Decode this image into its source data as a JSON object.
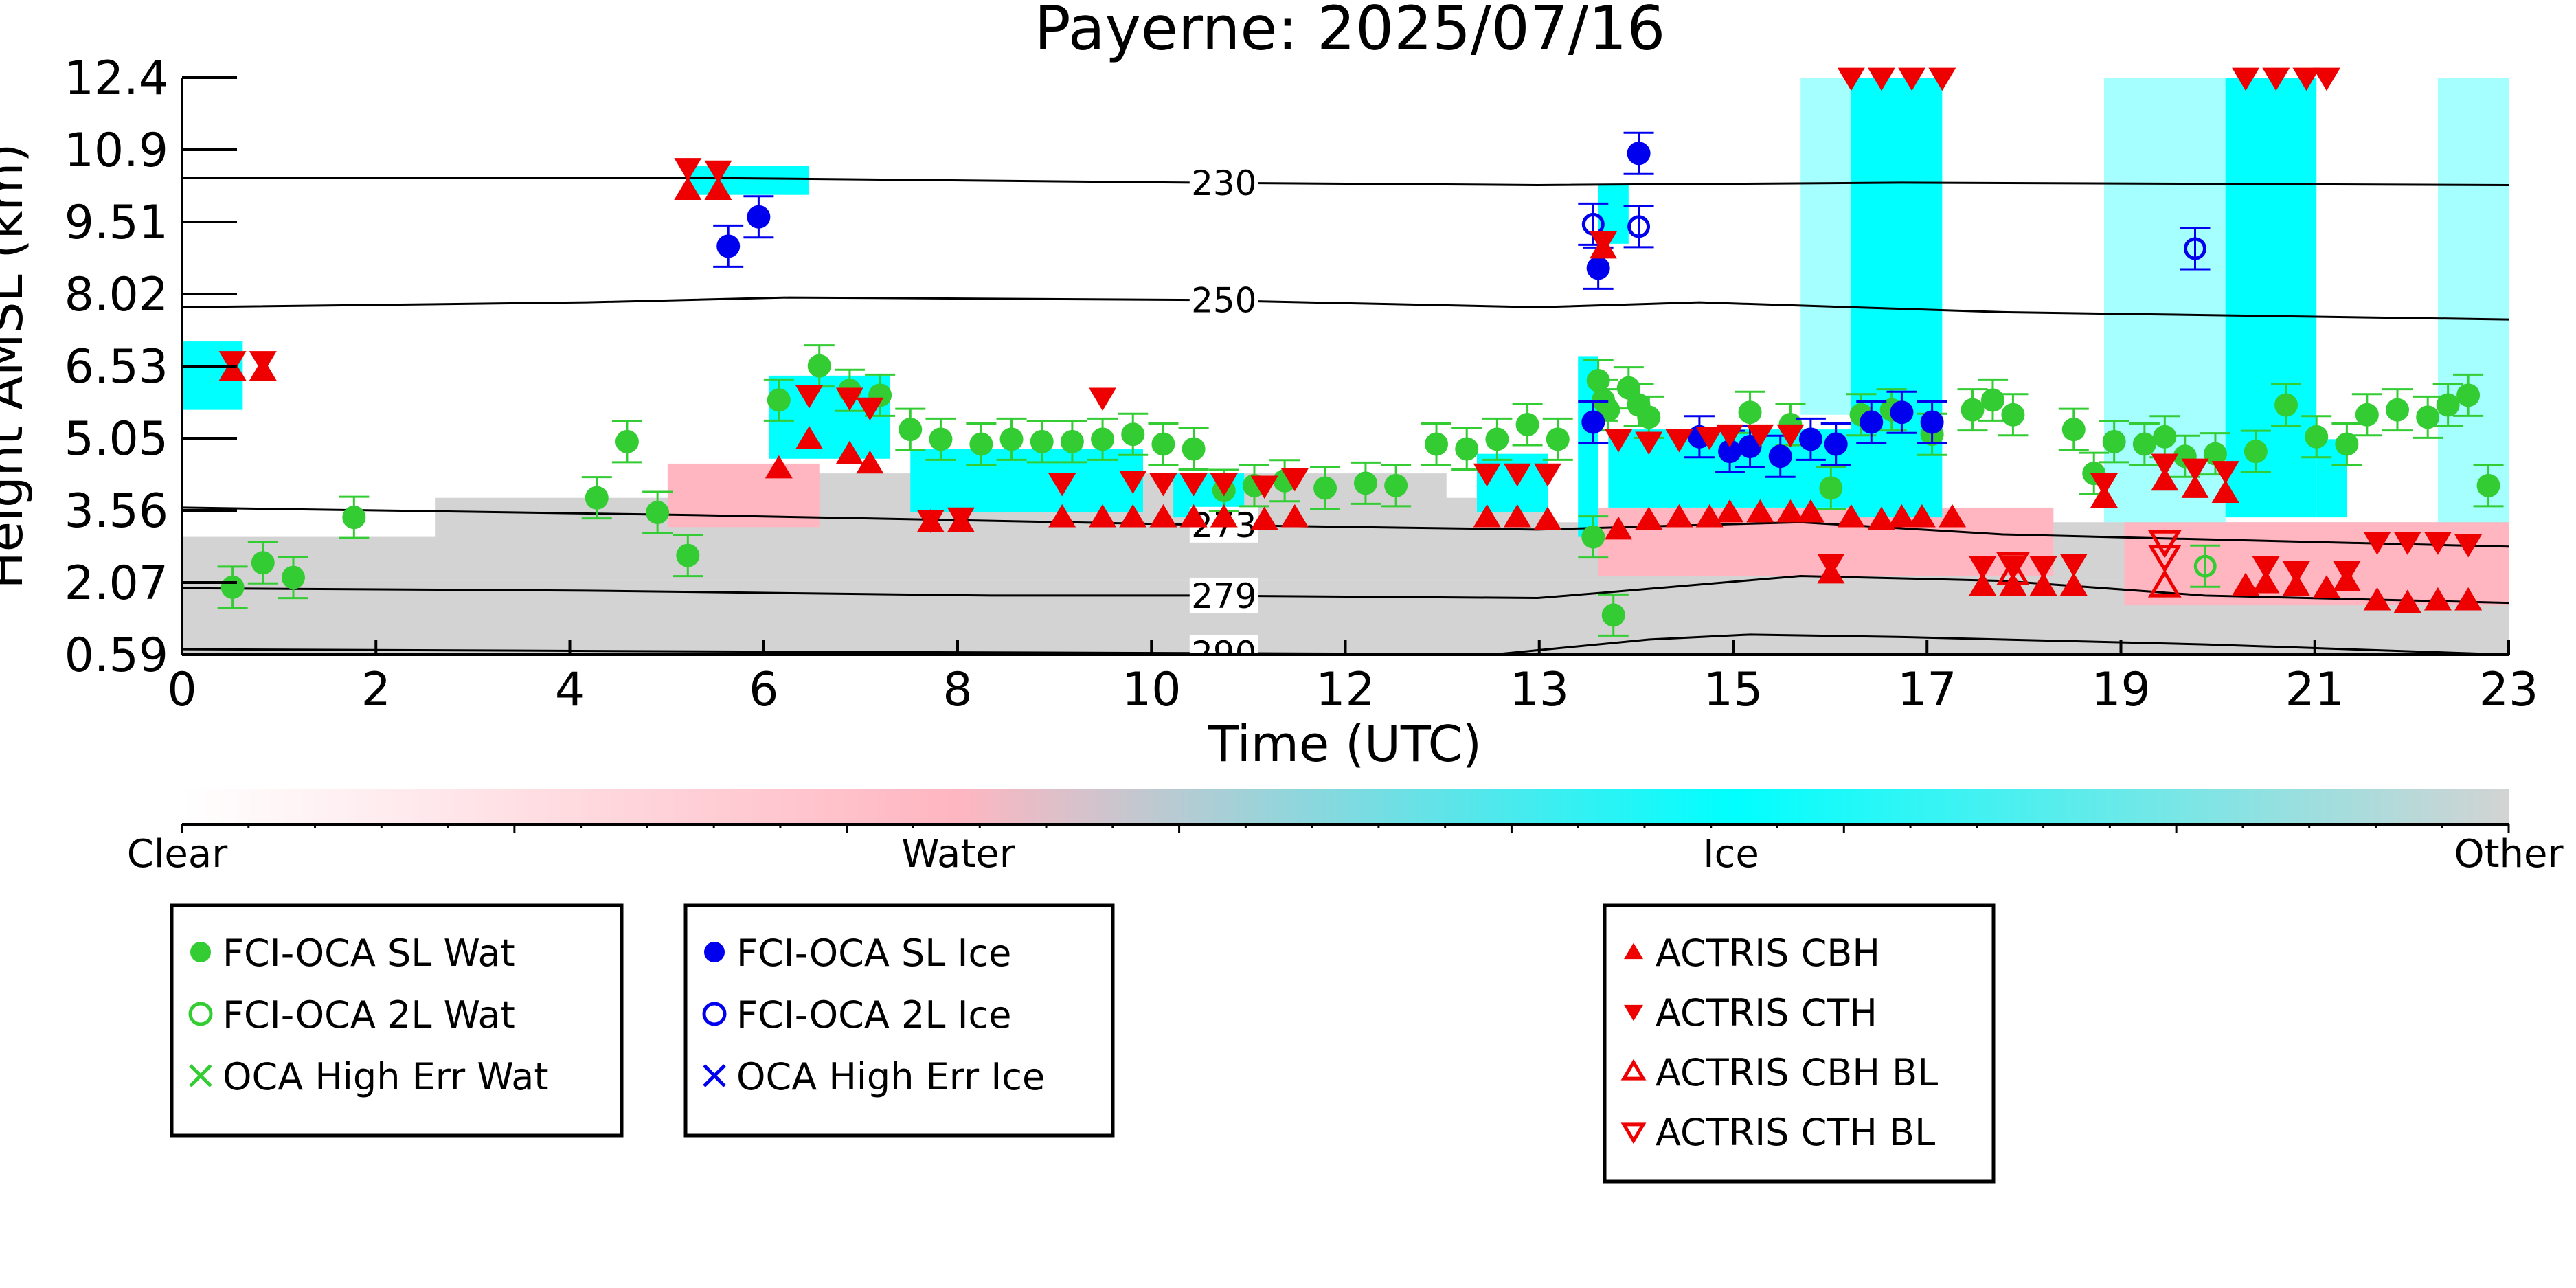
{
  "chart_data": {
    "type": "scatter",
    "title": "Payerne: 2025/07/16",
    "xlabel": "Time (UTC)",
    "ylabel": "Height AMSL (km)",
    "xlim": [
      0,
      23
    ],
    "ylim": [
      0.59,
      12.4
    ],
    "x_ticks": [
      "0",
      "2",
      "4",
      "6",
      "8",
      "10",
      "12",
      "13",
      "15",
      "17",
      "19",
      "21",
      "23"
    ],
    "y_ticks": [
      "12.4",
      "10.9",
      "9.51",
      "8.02",
      "6.53",
      "5.05",
      "3.56",
      "2.07",
      "0.59"
    ],
    "colorbar": {
      "labels": [
        "Clear",
        "Water",
        "Ice",
        "Other"
      ],
      "colors": [
        "#ffffff",
        "#ffb6c1",
        "#00ffff",
        "#d3d3d3"
      ]
    },
    "isotherms": [
      {
        "label": "230",
        "points": [
          [
            0,
            10.35
          ],
          [
            5,
            10.35
          ],
          [
            10,
            10.25
          ],
          [
            13.4,
            10.2
          ],
          [
            17,
            10.25
          ],
          [
            23,
            10.2
          ]
        ]
      },
      {
        "label": "250",
        "points": [
          [
            0,
            7.7
          ],
          [
            4,
            7.8
          ],
          [
            6,
            7.9
          ],
          [
            10,
            7.85
          ],
          [
            13.4,
            7.7
          ],
          [
            15,
            7.8
          ],
          [
            18,
            7.6
          ],
          [
            23,
            7.45
          ]
        ]
      },
      {
        "label": "273",
        "points": [
          [
            0,
            3.6
          ],
          [
            5,
            3.45
          ],
          [
            10,
            3.25
          ],
          [
            13.4,
            3.15
          ],
          [
            16,
            3.3
          ],
          [
            18,
            3.05
          ],
          [
            23,
            2.8
          ]
        ]
      },
      {
        "label": "279",
        "points": [
          [
            0,
            1.95
          ],
          [
            4,
            1.9
          ],
          [
            8,
            1.8
          ],
          [
            10,
            1.8
          ],
          [
            13.4,
            1.75
          ],
          [
            14,
            1.85
          ],
          [
            16,
            2.2
          ],
          [
            18,
            2.1
          ],
          [
            20,
            1.8
          ],
          [
            23,
            1.65
          ]
        ]
      },
      {
        "label": "290",
        "points": [
          [
            0,
            0.7
          ],
          [
            6,
            0.65
          ],
          [
            13,
            0.6
          ],
          [
            14.5,
            0.9
          ],
          [
            15.5,
            1.0
          ],
          [
            17,
            0.95
          ],
          [
            20,
            0.8
          ],
          [
            23,
            0.59
          ]
        ]
      }
    ],
    "series": [
      {
        "name": "FCI-OCA SL Wat",
        "color": "#33cc33",
        "marker": "filled-circle",
        "points": [
          [
            0.5,
            1.97
          ],
          [
            0.8,
            2.47
          ],
          [
            1.1,
            2.17
          ],
          [
            1.7,
            3.4
          ],
          [
            4.1,
            3.8
          ],
          [
            4.4,
            4.95
          ],
          [
            4.7,
            3.5
          ],
          [
            5.0,
            2.62
          ],
          [
            5.9,
            5.8
          ],
          [
            6.3,
            6.5
          ],
          [
            6.6,
            6.0
          ],
          [
            6.9,
            5.9
          ],
          [
            7.2,
            5.2
          ],
          [
            7.5,
            5.0
          ],
          [
            7.9,
            4.9
          ],
          [
            8.2,
            5.0
          ],
          [
            8.5,
            4.95
          ],
          [
            8.8,
            4.95
          ],
          [
            9.1,
            5.0
          ],
          [
            9.4,
            5.1
          ],
          [
            9.7,
            4.9
          ],
          [
            10.0,
            4.8
          ],
          [
            10.3,
            3.95
          ],
          [
            10.6,
            4.05
          ],
          [
            10.9,
            4.15
          ],
          [
            11.3,
            4.0
          ],
          [
            11.7,
            4.1
          ],
          [
            12.0,
            4.05
          ],
          [
            12.4,
            4.9
          ],
          [
            12.7,
            4.8
          ],
          [
            13.0,
            5.0
          ],
          [
            13.3,
            5.3
          ],
          [
            13.6,
            5.0
          ],
          [
            13.95,
            3.0
          ],
          [
            14.0,
            6.2
          ],
          [
            14.05,
            5.8
          ],
          [
            14.1,
            5.6
          ],
          [
            14.15,
            1.4
          ],
          [
            14.3,
            6.05
          ],
          [
            14.4,
            5.7
          ],
          [
            14.5,
            5.45
          ],
          [
            15.5,
            5.55
          ],
          [
            15.9,
            5.3
          ],
          [
            16.3,
            4.0
          ],
          [
            16.6,
            5.5
          ],
          [
            16.9,
            5.6
          ],
          [
            17.3,
            5.1
          ],
          [
            17.7,
            5.6
          ],
          [
            17.9,
            5.8
          ],
          [
            18.1,
            5.5
          ],
          [
            18.7,
            5.2
          ],
          [
            18.9,
            4.3
          ],
          [
            19.1,
            4.95
          ],
          [
            19.4,
            4.9
          ],
          [
            19.6,
            5.05
          ],
          [
            19.8,
            4.65
          ],
          [
            20.1,
            4.7
          ],
          [
            20.5,
            4.75
          ],
          [
            20.8,
            5.7
          ],
          [
            21.1,
            5.05
          ],
          [
            21.4,
            4.9
          ],
          [
            21.6,
            5.5
          ],
          [
            21.9,
            5.6
          ],
          [
            22.2,
            5.45
          ],
          [
            22.4,
            5.7
          ],
          [
            22.6,
            5.9
          ],
          [
            22.8,
            4.05
          ]
        ]
      },
      {
        "name": "FCI-OCA 2L Wat",
        "color": "#33cc33",
        "marker": "open-circle",
        "points": [
          [
            20.0,
            2.4
          ]
        ]
      },
      {
        "name": "OCA High Err Wat",
        "color": "#33cc33",
        "marker": "x",
        "points": []
      },
      {
        "name": "FCI-OCA SL Ice",
        "color": "#0000ee",
        "marker": "filled-circle",
        "points": [
          [
            5.4,
            8.95
          ],
          [
            5.7,
            9.55
          ],
          [
            13.95,
            5.35
          ],
          [
            14.0,
            8.5
          ],
          [
            14.4,
            10.85
          ],
          [
            15.0,
            5.05
          ],
          [
            15.3,
            4.75
          ],
          [
            15.5,
            4.85
          ],
          [
            15.8,
            4.65
          ],
          [
            16.1,
            5.0
          ],
          [
            16.35,
            4.9
          ],
          [
            16.7,
            5.35
          ],
          [
            17.0,
            5.55
          ],
          [
            17.3,
            5.35
          ]
        ]
      },
      {
        "name": "FCI-OCA 2L Ice",
        "color": "#0000ee",
        "marker": "open-circle",
        "points": [
          [
            13.95,
            9.4
          ],
          [
            14.4,
            9.35
          ],
          [
            19.9,
            8.9
          ]
        ]
      },
      {
        "name": "OCA High Err Ice",
        "color": "#0000ee",
        "marker": "x",
        "points": []
      },
      {
        "name": "ACTRIS CBH",
        "color": "#ee0000",
        "marker": "triangle-up",
        "points": [
          [
            0.5,
            6.4
          ],
          [
            0.8,
            6.4
          ],
          [
            5.0,
            10.1
          ],
          [
            5.3,
            10.1
          ],
          [
            5.9,
            4.4
          ],
          [
            6.2,
            5.0
          ],
          [
            6.6,
            4.7
          ],
          [
            6.8,
            4.5
          ],
          [
            7.4,
            3.3
          ],
          [
            7.7,
            3.3
          ],
          [
            8.7,
            3.4
          ],
          [
            9.1,
            3.4
          ],
          [
            9.4,
            3.4
          ],
          [
            9.7,
            3.4
          ],
          [
            10.0,
            3.4
          ],
          [
            10.3,
            3.4
          ],
          [
            10.7,
            3.35
          ],
          [
            11.0,
            3.4
          ],
          [
            12.9,
            3.4
          ],
          [
            13.2,
            3.4
          ],
          [
            13.5,
            3.35
          ],
          [
            14.05,
            8.9
          ],
          [
            14.2,
            3.15
          ],
          [
            14.5,
            3.35
          ],
          [
            14.8,
            3.4
          ],
          [
            15.1,
            3.4
          ],
          [
            15.3,
            3.5
          ],
          [
            15.6,
            3.5
          ],
          [
            15.9,
            3.5
          ],
          [
            16.1,
            3.5
          ],
          [
            16.3,
            2.25
          ],
          [
            16.5,
            3.4
          ],
          [
            16.8,
            3.35
          ],
          [
            17.0,
            3.4
          ],
          [
            17.2,
            3.4
          ],
          [
            17.5,
            3.4
          ],
          [
            17.8,
            2.0
          ],
          [
            18.1,
            2.0
          ],
          [
            18.4,
            2.0
          ],
          [
            18.7,
            2.0
          ],
          [
            19.0,
            3.8
          ],
          [
            19.6,
            4.15
          ],
          [
            19.9,
            4.0
          ],
          [
            20.2,
            3.9
          ],
          [
            20.4,
            2.0
          ],
          [
            20.6,
            2.05
          ],
          [
            20.9,
            2.0
          ],
          [
            21.2,
            1.95
          ],
          [
            21.4,
            2.1
          ],
          [
            21.7,
            1.7
          ],
          [
            22.0,
            1.65
          ],
          [
            22.3,
            1.7
          ],
          [
            22.6,
            1.7
          ]
        ]
      },
      {
        "name": "ACTRIS CTH",
        "color": "#ee0000",
        "marker": "triangle-down",
        "points": [
          [
            0.5,
            6.6
          ],
          [
            0.8,
            6.6
          ],
          [
            5.0,
            10.55
          ],
          [
            5.3,
            10.5
          ],
          [
            6.2,
            5.9
          ],
          [
            6.6,
            5.85
          ],
          [
            6.8,
            5.65
          ],
          [
            7.4,
            3.35
          ],
          [
            7.7,
            3.4
          ],
          [
            8.7,
            4.1
          ],
          [
            9.1,
            5.85
          ],
          [
            9.4,
            4.15
          ],
          [
            9.7,
            4.1
          ],
          [
            10.0,
            4.1
          ],
          [
            10.3,
            4.1
          ],
          [
            10.7,
            4.05
          ],
          [
            11.0,
            4.2
          ],
          [
            12.9,
            4.3
          ],
          [
            13.2,
            4.3
          ],
          [
            13.5,
            4.3
          ],
          [
            14.05,
            9.05
          ],
          [
            14.2,
            5.0
          ],
          [
            14.5,
            4.95
          ],
          [
            14.8,
            5.0
          ],
          [
            15.1,
            5.05
          ],
          [
            15.3,
            5.1
          ],
          [
            15.6,
            5.1
          ],
          [
            15.9,
            5.1
          ],
          [
            16.3,
            2.45
          ],
          [
            16.5,
            12.4
          ],
          [
            16.8,
            12.4
          ],
          [
            17.1,
            12.4
          ],
          [
            17.4,
            12.4
          ],
          [
            17.8,
            2.4
          ],
          [
            18.1,
            2.4
          ],
          [
            18.4,
            2.4
          ],
          [
            18.7,
            2.45
          ],
          [
            19.0,
            4.1
          ],
          [
            19.6,
            4.5
          ],
          [
            19.9,
            4.4
          ],
          [
            20.2,
            4.35
          ],
          [
            20.4,
            12.4
          ],
          [
            20.7,
            12.4
          ],
          [
            21.0,
            12.4
          ],
          [
            21.2,
            12.4
          ],
          [
            20.6,
            2.4
          ],
          [
            20.9,
            2.3
          ],
          [
            21.4,
            2.3
          ],
          [
            21.7,
            2.9
          ],
          [
            22.0,
            2.9
          ],
          [
            22.3,
            2.9
          ],
          [
            22.6,
            2.85
          ]
        ]
      },
      {
        "name": "ACTRIS CBH BL",
        "color": "#ee0000",
        "marker": "open-triangle-up",
        "points": [
          [
            18.1,
            2.25
          ],
          [
            19.6,
            2.0
          ]
        ]
      },
      {
        "name": "ACTRIS CTH BL",
        "color": "#ee0000",
        "marker": "open-triangle-down",
        "points": [
          [
            18.1,
            2.45
          ],
          [
            19.6,
            2.9
          ],
          [
            19.6,
            2.6
          ]
        ]
      }
    ]
  }
}
